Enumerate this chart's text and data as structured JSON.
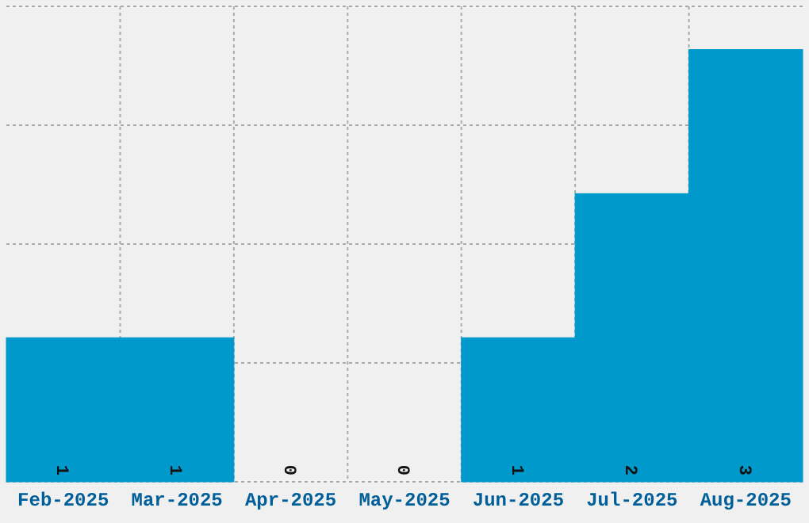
{
  "chart_data": {
    "type": "bar",
    "categories": [
      "Feb-2025",
      "Mar-2025",
      "Apr-2025",
      "May-2025",
      "Jun-2025",
      "Jul-2025",
      "Aug-2025"
    ],
    "values": [
      1,
      1,
      0,
      0,
      1,
      2,
      3
    ],
    "color": "#0099cc",
    "data_labels": true,
    "grid": true,
    "tick_labels": "x",
    "ylim": [
      0,
      3.3
    ],
    "yticks": [
      {
        "value": 0,
        "label": null
      },
      {
        "value": 0.825,
        "label": null
      },
      {
        "value": 1.65,
        "label": null
      },
      {
        "value": 2.475,
        "label": null
      },
      {
        "value": 3.3,
        "label": null
      }
    ]
  }
}
